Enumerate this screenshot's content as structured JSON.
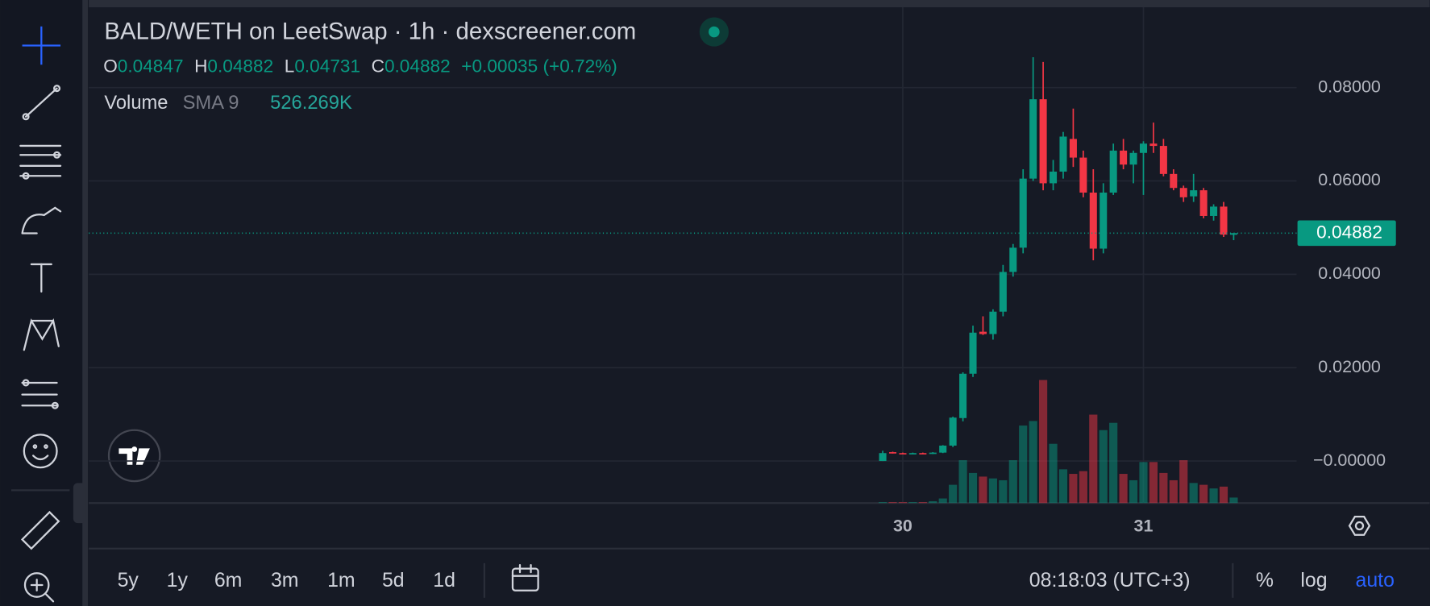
{
  "header": {
    "title": "BALD/WETH on LeetSwap · 1h · dexscreener.com",
    "ohlc": [
      {
        "key": "O",
        "value": "0.04847"
      },
      {
        "key": "H",
        "value": "0.04882"
      },
      {
        "key": "L",
        "value": "0.04731"
      },
      {
        "key": "C",
        "value": "0.04882"
      }
    ],
    "change": "+0.00035 (+0.72%)",
    "volume_label": "Volume",
    "sma_label": "SMA 9",
    "sma_value": "526.269K"
  },
  "chart_data": {
    "type": "candlestick",
    "categories": [
      null,
      null,
      "30",
      null,
      null,
      null,
      null,
      null,
      null,
      null,
      null,
      null,
      null,
      null,
      null,
      null,
      null,
      null,
      null,
      null,
      null,
      null,
      null,
      null,
      null,
      null,
      "31",
      null,
      null,
      null,
      null,
      null,
      null,
      null,
      null,
      null
    ],
    "open": [
      0,
      0.0019,
      0.0017,
      0.0016,
      0.0017,
      0.0016,
      0.0018,
      0.0033,
      0.0092,
      0.0187,
      0.0277,
      0.0272,
      0.032,
      0.0405,
      0.0457,
      0.0605,
      0.0775,
      0.0595,
      0.062,
      0.069,
      0.065,
      0.0575,
      0.0455,
      0.0575,
      0.0665,
      0.0635,
      0.066,
      0.068,
      0.0675,
      0.0615,
      0.0585,
      0.0567,
      0.058,
      0.0525,
      0.0545,
      0.04847
    ],
    "high": [
      0.0022,
      0.002,
      0.0018,
      0.0018,
      0.0018,
      0.0019,
      0.0034,
      0.0095,
      0.019,
      0.029,
      0.031,
      0.0325,
      0.042,
      0.0465,
      0.0625,
      0.0865,
      0.0855,
      0.0645,
      0.0705,
      0.0755,
      0.0665,
      0.0625,
      0.0595,
      0.068,
      0.069,
      0.0665,
      0.0685,
      0.0725,
      0.069,
      0.0625,
      0.059,
      0.0615,
      0.0585,
      0.055,
      0.0555,
      0.04882
    ],
    "low": [
      0,
      0.0016,
      0.0015,
      0.0015,
      0.0015,
      0.0015,
      0.0017,
      0.003,
      0.0085,
      0.018,
      0.027,
      0.026,
      0.031,
      0.0395,
      0.0445,
      0.06,
      0.058,
      0.058,
      0.0605,
      0.063,
      0.0565,
      0.043,
      0.0445,
      0.057,
      0.0625,
      0.0595,
      0.057,
      0.066,
      0.061,
      0.058,
      0.0555,
      0.0555,
      0.052,
      0.0515,
      0.048,
      0.04731
    ],
    "close": [
      0.0017,
      0.0017,
      0.0016,
      0.0017,
      0.0016,
      0.0018,
      0.0033,
      0.0093,
      0.0187,
      0.0275,
      0.0272,
      0.032,
      0.0405,
      0.0457,
      0.0605,
      0.0775,
      0.0595,
      0.062,
      0.0695,
      0.065,
      0.0575,
      0.0455,
      0.0575,
      0.0665,
      0.0635,
      0.066,
      0.068,
      0.0675,
      0.0615,
      0.0585,
      0.0565,
      0.058,
      0.0525,
      0.0545,
      0.0485,
      0.04882
    ],
    "volume": [
      20,
      20,
      20,
      20,
      20,
      40,
      100,
      400,
      940,
      660,
      580,
      540,
      500,
      940,
      1700,
      1800,
      2700,
      1300,
      740,
      640,
      700,
      1940,
      1600,
      1760,
      640,
      500,
      900,
      900,
      660,
      500,
      940,
      440,
      400,
      320,
      360,
      120
    ],
    "volume_ylim": [
      0,
      10880
    ],
    "ylim": [
      -0.009,
      0.0972
    ],
    "yticks": [
      {
        "value": 0.08,
        "label": "0.08000"
      },
      {
        "value": 0.06,
        "label": "0.06000"
      },
      {
        "value": 0.04,
        "label": "0.04000"
      },
      {
        "value": 0.02,
        "label": "0.02000"
      },
      {
        "value": 0,
        "label": "−0.00000"
      }
    ],
    "grid": true,
    "up_color": "#089981",
    "down_color": "#f23645",
    "last_price": {
      "value": 0.04882,
      "label": "0.04882"
    }
  },
  "toolbar": {
    "ranges": [
      "5y",
      "1y",
      "6m",
      "3m",
      "1m",
      "5d",
      "1d"
    ],
    "clock": "08:18:03 (UTC+3)",
    "options": [
      "%",
      "log",
      "auto"
    ]
  }
}
